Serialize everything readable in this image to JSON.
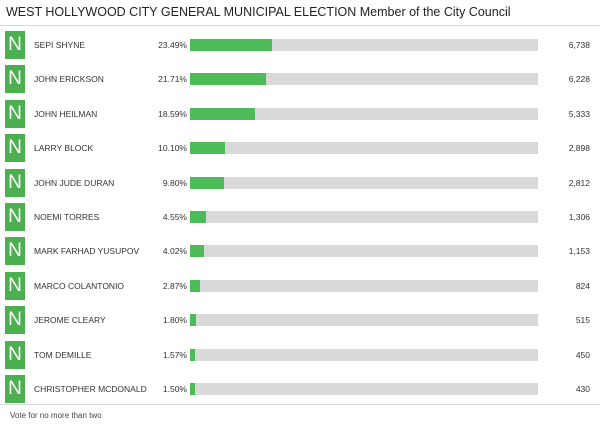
{
  "title": "WEST HOLLYWOOD CITY GENERAL MUNICIPAL ELECTION Member of the City Council",
  "badge_letter": "N",
  "candidates": [
    {
      "name": "SEPI SHYNE",
      "percent": "23.49%",
      "votes": "6,738",
      "share": 23.49
    },
    {
      "name": "JOHN ERICKSON",
      "percent": "21.71%",
      "votes": "6,228",
      "share": 21.71
    },
    {
      "name": "JOHN HEILMAN",
      "percent": "18.59%",
      "votes": "5,333",
      "share": 18.59
    },
    {
      "name": "LARRY BLOCK",
      "percent": "10.10%",
      "votes": "2,898",
      "share": 10.1
    },
    {
      "name": "JOHN JUDE DURAN",
      "percent": "9.80%",
      "votes": "2,812",
      "share": 9.8
    },
    {
      "name": "NOEMI TORRES",
      "percent": "4.55%",
      "votes": "1,306",
      "share": 4.55
    },
    {
      "name": "MARK FARHAD YUSUPOV",
      "percent": "4.02%",
      "votes": "1,153",
      "share": 4.02
    },
    {
      "name": "MARCO COLANTONIO",
      "percent": "2.87%",
      "votes": "824",
      "share": 2.87
    },
    {
      "name": "JEROME CLEARY",
      "percent": "1.80%",
      "votes": "515",
      "share": 1.8
    },
    {
      "name": "TOM DEMILLE",
      "percent": "1.57%",
      "votes": "450",
      "share": 1.57
    },
    {
      "name": "CHRISTOPHER MCDONALD",
      "percent": "1.50%",
      "votes": "430",
      "share": 1.5
    }
  ],
  "footnote": "Vote for no more than two",
  "colors": {
    "badge": "#4caf50",
    "bar_fill": "#4cbb58",
    "bar_track": "#d9d9d9"
  }
}
